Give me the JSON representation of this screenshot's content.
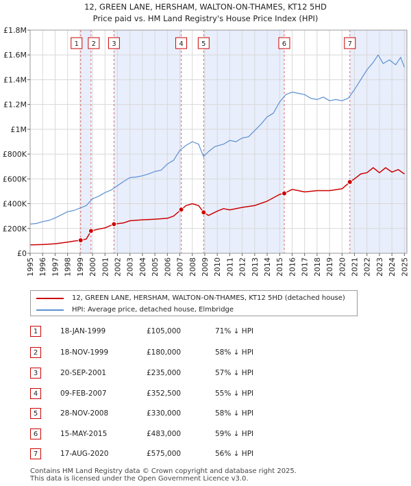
{
  "chart_data": {
    "type": "line",
    "title": "12, GREEN LANE, HERSHAM, WALTON-ON-THAMES, KT12 5HD",
    "subtitle": "Price paid vs. HM Land Registry's House Price Index (HPI)",
    "xlim": [
      1995,
      2025.2
    ],
    "ylim": [
      0,
      1800000
    ],
    "x_ticks": [
      1995,
      1996,
      1997,
      1998,
      1999,
      2000,
      2001,
      2002,
      2003,
      2004,
      2005,
      2006,
      2007,
      2008,
      2009,
      2010,
      2011,
      2012,
      2013,
      2014,
      2015,
      2016,
      2017,
      2018,
      2019,
      2020,
      2021,
      2022,
      2023,
      2024,
      2025
    ],
    "y_ticks": [
      {
        "value": 0,
        "label": "£0"
      },
      {
        "value": 200000,
        "label": "£200K"
      },
      {
        "value": 400000,
        "label": "£400K"
      },
      {
        "value": 600000,
        "label": "£600K"
      },
      {
        "value": 800000,
        "label": "£800K"
      },
      {
        "value": 1000000,
        "label": "£1M"
      },
      {
        "value": 1200000,
        "label": "£1.2M"
      },
      {
        "value": 1400000,
        "label": "£1.4M"
      },
      {
        "value": 1600000,
        "label": "£1.6M"
      },
      {
        "value": 1800000,
        "label": "£1.8M"
      }
    ],
    "series": [
      {
        "name": "12, GREEN LANE, HERSHAM, WALTON-ON-THAMES, KT12 5HD (detached house)",
        "color": "#cc0000",
        "x": [
          1995,
          1996,
          1997,
          1998,
          1998.5,
          1999.05,
          1999.5,
          1999.88,
          2000.5,
          2001,
          2001.72,
          2002.5,
          2003,
          2004,
          2005,
          2006,
          2006.5,
          2007.11,
          2007.5,
          2008,
          2008.5,
          2008.91,
          2009.3,
          2010,
          2010.5,
          2011,
          2012,
          2013,
          2014,
          2015,
          2015.37,
          2016,
          2016.5,
          2017,
          2018,
          2019,
          2020,
          2020.63,
          2021,
          2021.5,
          2022,
          2022.5,
          2023,
          2023.5,
          2024,
          2024.5,
          2025
        ],
        "y": [
          68000,
          70000,
          77000,
          90000,
          98000,
          105000,
          115000,
          180000,
          195000,
          205000,
          235000,
          245000,
          262000,
          270000,
          275000,
          282000,
          300000,
          352500,
          385000,
          400000,
          385000,
          330000,
          305000,
          340000,
          360000,
          350000,
          370000,
          385000,
          420000,
          475000,
          483000,
          515000,
          505000,
          495000,
          505000,
          505000,
          520000,
          575000,
          600000,
          640000,
          650000,
          690000,
          650000,
          690000,
          655000,
          675000,
          640000
        ]
      },
      {
        "name": "HPI: Average price, detached house, Elmbridge",
        "color": "#5b8fd1",
        "x": [
          1995,
          1995.5,
          1996,
          1996.5,
          1997,
          1997.5,
          1998,
          1998.5,
          1999,
          1999.5,
          2000,
          2000.5,
          2001,
          2001.5,
          2002,
          2002.5,
          2003,
          2003.5,
          2004,
          2004.5,
          2005,
          2005.5,
          2006,
          2006.5,
          2007,
          2007.5,
          2008,
          2008.5,
          2008.9,
          2009.3,
          2009.8,
          2010.5,
          2011,
          2011.5,
          2012,
          2012.5,
          2013,
          2013.5,
          2014,
          2014.5,
          2015,
          2015.5,
          2016,
          2016.5,
          2017,
          2017.5,
          2018,
          2018.5,
          2019,
          2019.5,
          2020,
          2020.5,
          2021,
          2021.5,
          2022,
          2022.5,
          2022.9,
          2023.3,
          2023.8,
          2024.3,
          2024.7,
          2025
        ],
        "y": [
          235000,
          240000,
          255000,
          265000,
          285000,
          310000,
          335000,
          345000,
          365000,
          385000,
          440000,
          460000,
          490000,
          510000,
          545000,
          580000,
          610000,
          615000,
          625000,
          640000,
          660000,
          670000,
          720000,
          750000,
          830000,
          870000,
          900000,
          880000,
          780000,
          820000,
          860000,
          880000,
          910000,
          900000,
          930000,
          940000,
          990000,
          1040000,
          1100000,
          1130000,
          1220000,
          1280000,
          1300000,
          1290000,
          1280000,
          1250000,
          1240000,
          1260000,
          1230000,
          1240000,
          1230000,
          1250000,
          1320000,
          1400000,
          1480000,
          1540000,
          1600000,
          1530000,
          1560000,
          1520000,
          1580000,
          1500000
        ]
      }
    ],
    "sales": [
      {
        "id": "1",
        "x": 1999.05,
        "price": 105000
      },
      {
        "id": "2",
        "x": 1999.88,
        "price": 180000
      },
      {
        "id": "3",
        "x": 2001.72,
        "price": 235000
      },
      {
        "id": "4",
        "x": 2007.11,
        "price": 352500
      },
      {
        "id": "5",
        "x": 2008.91,
        "price": 330000
      },
      {
        "id": "6",
        "x": 2015.37,
        "price": 483000
      },
      {
        "id": "7",
        "x": 2020.63,
        "price": 575000
      }
    ],
    "shaded_ranges": [
      [
        1999.05,
        1999.88
      ],
      [
        2001.72,
        2007.11
      ],
      [
        2008.91,
        2015.37
      ],
      [
        2020.63,
        2025.2
      ]
    ]
  },
  "legend": {
    "property_label": "12, GREEN LANE, HERSHAM, WALTON-ON-THAMES, KT12 5HD (detached house)",
    "hpi_label": "HPI: Average price, detached house, Elmbridge",
    "property_color": "#cc0000",
    "hpi_color": "#5b8fd1"
  },
  "transactions": [
    {
      "id": "1",
      "date": "18-JAN-1999",
      "price": "£105,000",
      "hpi": "71% ↓ HPI"
    },
    {
      "id": "2",
      "date": "18-NOV-1999",
      "price": "£180,000",
      "hpi": "58% ↓ HPI"
    },
    {
      "id": "3",
      "date": "20-SEP-2001",
      "price": "£235,000",
      "hpi": "57% ↓ HPI"
    },
    {
      "id": "4",
      "date": "09-FEB-2007",
      "price": "£352,500",
      "hpi": "55% ↓ HPI"
    },
    {
      "id": "5",
      "date": "28-NOV-2008",
      "price": "£330,000",
      "hpi": "58% ↓ HPI"
    },
    {
      "id": "6",
      "date": "15-MAY-2015",
      "price": "£483,000",
      "hpi": "59% ↓ HPI"
    },
    {
      "id": "7",
      "date": "17-AUG-2020",
      "price": "£575,000",
      "hpi": "56% ↓ HPI"
    }
  ],
  "footer": {
    "line1": "Contains HM Land Registry data © Crown copyright and database right 2025.",
    "line2": "This data is licensed under the Open Government Licence v3.0."
  }
}
